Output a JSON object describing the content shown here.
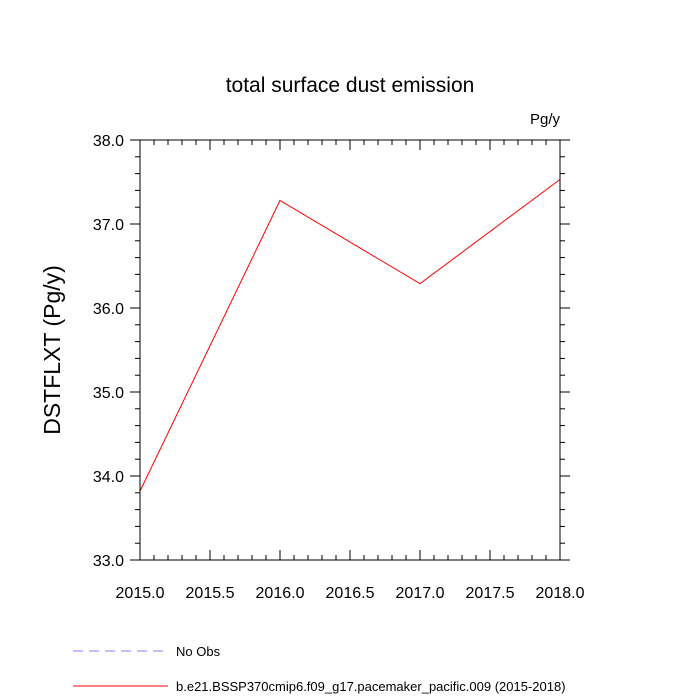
{
  "chart_data": {
    "type": "line",
    "title": "total surface dust emission",
    "units_label": "Pg/y",
    "ylabel": "DSTFLXT  (Pg/y)",
    "xlabel": "",
    "xlim": [
      2015.0,
      2018.0
    ],
    "ylim": [
      33.0,
      38.0
    ],
    "x_ticks": [
      "2015.0",
      "2015.5",
      "2016.0",
      "2016.5",
      "2017.0",
      "2017.5",
      "2018.0"
    ],
    "y_ticks": [
      "33.0",
      "34.0",
      "35.0",
      "36.0",
      "37.0",
      "38.0"
    ],
    "grid": false,
    "legend_position": "bottom",
    "series": [
      {
        "name": "b.e21.BSSP370cmip6.f09_g17.pacemaker_pacific.009 (2015-2018)",
        "color": "#ff0000",
        "dash": "solid",
        "x": [
          2015.0,
          2016.0,
          2017.0,
          2018.0
        ],
        "y": [
          33.82,
          37.28,
          36.29,
          37.53
        ]
      }
    ],
    "legend": [
      {
        "label": "No Obs",
        "color": "#8080ff",
        "dash": "dashed"
      },
      {
        "label": "b.e21.BSSP370cmip6.f09_g17.pacemaker_pacific.009 (2015-2018)",
        "color": "#ff0000",
        "dash": "solid"
      }
    ]
  }
}
